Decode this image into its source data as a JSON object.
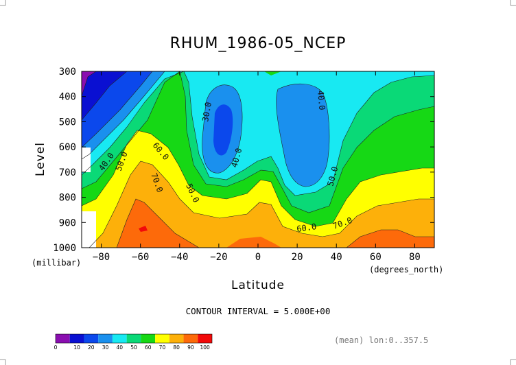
{
  "chart_data": {
    "type": "heatmap",
    "title": "RHUM_1986-05_NCEP",
    "xlabel": "Latitude",
    "ylabel": "Level",
    "x_unit": "(degrees_north)",
    "y_unit": "(millibar)",
    "x_ticks": [
      -80,
      -60,
      -40,
      -20,
      0,
      20,
      40,
      60,
      80
    ],
    "y_ticks": [
      300,
      400,
      500,
      600,
      700,
      800,
      900,
      1000
    ],
    "xlim": [
      -90,
      90
    ],
    "ylim": [
      1000,
      300
    ],
    "contour_interval_note": "CONTOUR INTERVAL = 5.000E+00",
    "footer_note": "(mean) lon:0..357.5",
    "colorbar": {
      "levels": [
        0,
        10,
        20,
        30,
        40,
        50,
        60,
        70,
        80,
        90,
        100
      ],
      "colors": [
        "#8a0eb0",
        "#0a10d2",
        "#0b48ec",
        "#1a90ee",
        "#18e9f2",
        "#0ad977",
        "#16d815",
        "#ffff00",
        "#fdb00a",
        "#fd6a0a",
        "#f20a0a"
      ]
    },
    "contour_labels": [
      "30.0",
      "40.0",
      "40.0",
      "40.0",
      "50.0",
      "50.0",
      "50.0",
      "60.0",
      "60.0",
      "70.0",
      "70.0"
    ],
    "grid": false,
    "legend": "bottom-left colorbar"
  }
}
